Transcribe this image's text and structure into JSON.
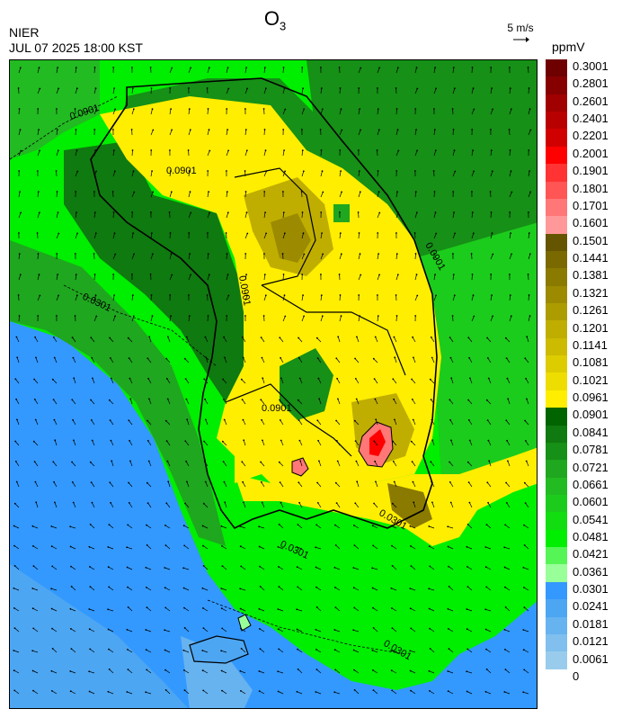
{
  "header": {
    "agency": "NIER",
    "datetime": "JUL 07 2025 18:00 KST",
    "title_main": "O",
    "title_sub": "3"
  },
  "wind_reference": {
    "label": "5 m/s",
    "icon": "wind-arrow-icon"
  },
  "legend": {
    "unit": "ppmV",
    "labels": [
      "0.3001",
      "0.2801",
      "0.2601",
      "0.2401",
      "0.2201",
      "0.2001",
      "0.1901",
      "0.1801",
      "0.1701",
      "0.1601",
      "0.1501",
      "0.1441",
      "0.1381",
      "0.1321",
      "0.1261",
      "0.1201",
      "0.1141",
      "0.1081",
      "0.1021",
      "0.0961",
      "0.0901",
      "0.0841",
      "0.0781",
      "0.0721",
      "0.0661",
      "0.0601",
      "0.0541",
      "0.0481",
      "0.0421",
      "0.0361",
      "0.0301",
      "0.0241",
      "0.0181",
      "0.0121",
      "0.0061",
      "0"
    ],
    "colors": [
      "#6e0000",
      "#870000",
      "#a00000",
      "#b80000",
      "#d00000",
      "#ff0000",
      "#ff3333",
      "#ff5555",
      "#ff7777",
      "#ff9999",
      "#665500",
      "#7a6900",
      "#8a7a00",
      "#9c8b00",
      "#ad9c00",
      "#bfae00",
      "#ccbb00",
      "#ddcc00",
      "#eedd00",
      "#ffee00",
      "#006400",
      "#0f7a0f",
      "#169016",
      "#1fa71f",
      "#22bb22",
      "#1ccc1c",
      "#11dd11",
      "#00ee00",
      "#55f555",
      "#99ff99",
      "#3399ff",
      "#4da6f2",
      "#66b3f0",
      "#80bfee",
      "#99ccec"
    ]
  },
  "map": {
    "contour_labels": [
      "0.0901",
      "0.0901",
      "0.0901",
      "0.0901",
      "0.0901",
      "0.0301",
      "0.0301",
      "0.0301",
      "0.0301"
    ]
  }
}
